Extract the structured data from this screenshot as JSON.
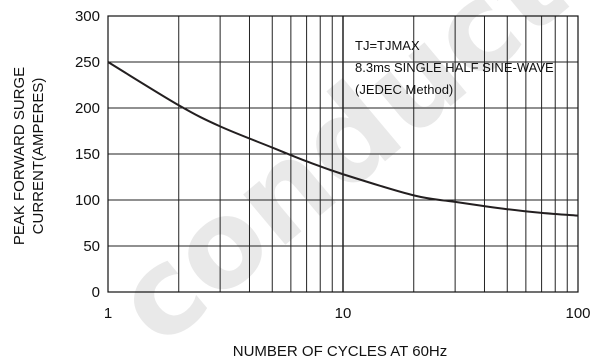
{
  "chart_data": {
    "type": "line",
    "title": "",
    "xlabel": "NUMBER OF CYCLES AT 60Hz",
    "ylabel_lines": [
      "PEAK FORWARD SURGE",
      "CURRENT(AMPERES)"
    ],
    "x_scale": "log",
    "xlim": [
      1,
      100
    ],
    "ylim": [
      0,
      300
    ],
    "grid": true,
    "x_ticks": [
      {
        "value": 1,
        "label": "1"
      },
      {
        "value": 10,
        "label": "10"
      },
      {
        "value": 100,
        "label": "100"
      }
    ],
    "y_ticks": [
      {
        "value": 0,
        "label": "0"
      },
      {
        "value": 50,
        "label": "50"
      },
      {
        "value": 100,
        "label": "100"
      },
      {
        "value": 150,
        "label": "150"
      },
      {
        "value": 200,
        "label": "200"
      },
      {
        "value": 250,
        "label": "250"
      },
      {
        "value": 300,
        "label": "300"
      }
    ],
    "series": [
      {
        "color": "#231f20",
        "x": [
          1,
          2,
          3,
          5,
          7,
          10,
          20,
          30,
          50,
          70,
          100
        ],
        "y": [
          250,
          203,
          180,
          157,
          142,
          128,
          105,
          98,
          90,
          86,
          83
        ]
      }
    ],
    "annotations": [
      "TJ=TJMAX",
      "8.3ms SINGLE HALF  SINE-WAVE",
      "(JEDEC   Method)"
    ],
    "watermark": "conductor"
  }
}
